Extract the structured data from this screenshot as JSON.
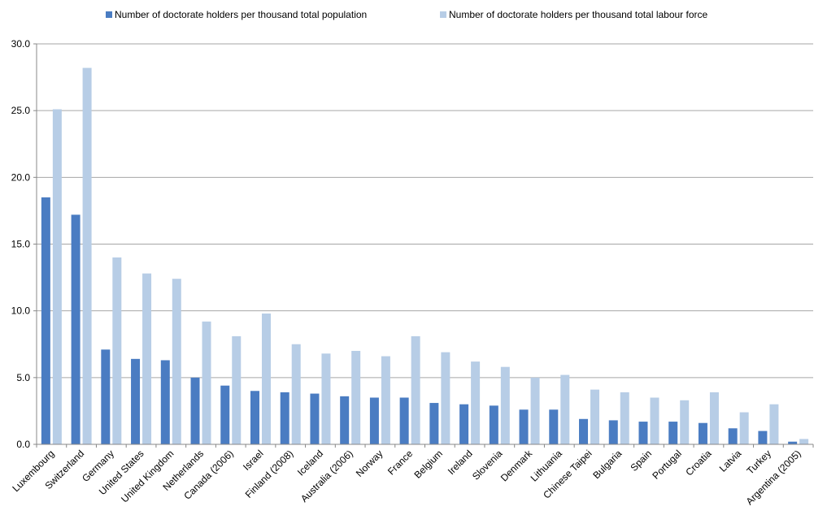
{
  "chart_data": {
    "type": "bar",
    "categories": [
      "Luxembourg",
      "Switzerland",
      "Germany",
      "United States",
      "United Kingdom",
      "Netherlands",
      "Canada (2006)",
      "Israel",
      "Finland (2008)",
      "Iceland",
      "Australia (2006)",
      "Norway",
      "France",
      "Belgium",
      "Ireland",
      "Slovenia",
      "Denmark",
      "Lithuania",
      "Chinese Taipei",
      "Bulgaria",
      "Spain",
      "Portugal",
      "Croatia",
      "Latvia",
      "Turkey",
      "Argentina (2005)"
    ],
    "series": [
      {
        "name": "Number of doctorate holders per thousand total population",
        "color": "#4a7cc2",
        "values": [
          18.5,
          17.2,
          7.1,
          6.4,
          6.3,
          5.0,
          4.4,
          4.0,
          3.9,
          3.8,
          3.6,
          3.5,
          3.5,
          3.1,
          3.0,
          2.9,
          2.6,
          2.6,
          1.9,
          1.8,
          1.7,
          1.7,
          1.6,
          1.2,
          1.0,
          0.2
        ]
      },
      {
        "name": "Number of doctorate holders per thousand total labour force",
        "color": "#b7cde6",
        "values": [
          25.1,
          28.2,
          14.0,
          12.8,
          12.4,
          9.2,
          8.1,
          9.8,
          7.5,
          6.8,
          7.0,
          6.6,
          8.1,
          6.9,
          6.2,
          5.8,
          5.0,
          5.2,
          4.1,
          3.9,
          3.5,
          3.3,
          3.9,
          2.4,
          3.0,
          0.4
        ]
      }
    ],
    "yticks": [
      "0.0",
      "5.0",
      "10.0",
      "15.0",
      "20.0",
      "25.0",
      "30.0"
    ],
    "ylim": [
      0,
      30
    ],
    "grid": true,
    "legend_position": "top"
  }
}
